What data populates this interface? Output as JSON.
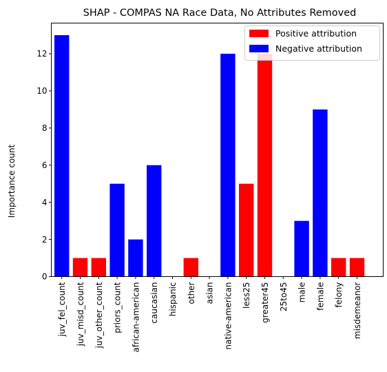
{
  "chart_data": {
    "type": "bar",
    "title": "SHAP - COMPAS NA Race Data, No Attributes Removed",
    "xlabel": "",
    "ylabel": "Importance count",
    "ylim": [
      0,
      13.65
    ],
    "yticks": [
      0,
      2,
      4,
      6,
      8,
      10,
      12
    ],
    "grid": false,
    "legend_position": "top-right",
    "categories": [
      "juv_fel_count",
      "juv_misd_count",
      "juv_other_count",
      "priors_count",
      "african-american",
      "caucasian",
      "hispanic",
      "other",
      "asian",
      "native-american",
      "less25",
      "greater45",
      "25to45",
      "male",
      "female",
      "felony",
      "misdemeanor"
    ],
    "values": [
      13,
      1,
      1,
      5,
      2,
      6,
      0,
      1,
      0,
      12,
      5,
      12,
      0,
      3,
      9,
      1,
      1
    ],
    "attribution": [
      "negative",
      "positive",
      "positive",
      "negative",
      "negative",
      "negative",
      "negative",
      "positive",
      "negative",
      "negative",
      "positive",
      "positive",
      "negative",
      "negative",
      "negative",
      "positive",
      "positive"
    ],
    "legend": [
      {
        "key": "positive",
        "label": "Positive attribution",
        "color": "#ff0000"
      },
      {
        "key": "negative",
        "label": "Negative attribution",
        "color": "#0000ff"
      }
    ]
  }
}
